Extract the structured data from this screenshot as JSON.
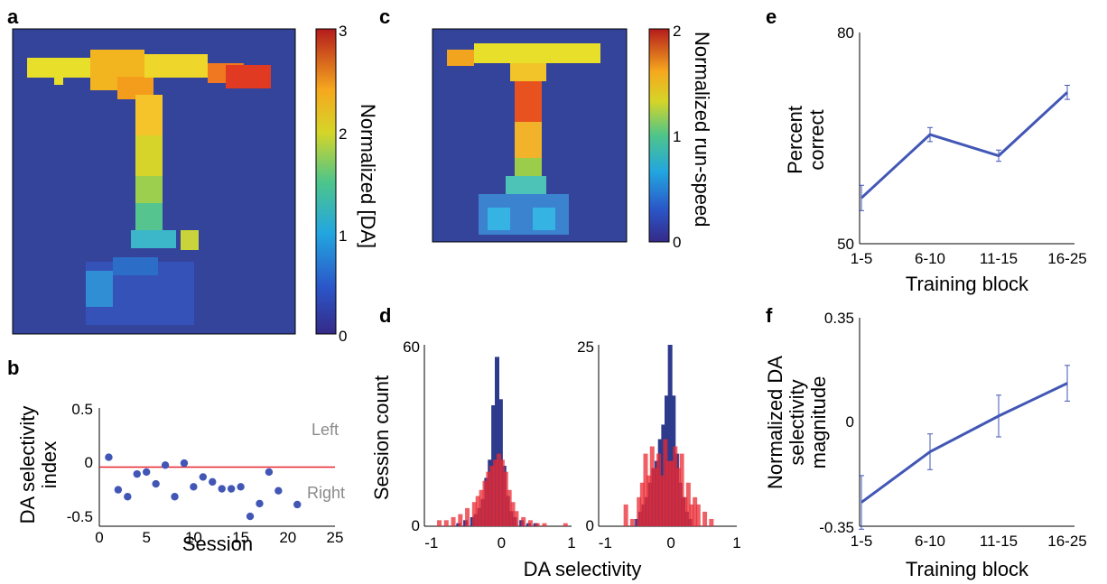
{
  "colors": {
    "bg_map": "#35449b",
    "line": "#4257b5",
    "red": "#e8242c",
    "blue_hist": "#2e3a8c",
    "red_hist": "#ea2a33",
    "gray": "#8a8a8a"
  },
  "panels": {
    "a": "a",
    "b": "b",
    "c": "c",
    "d": "d",
    "e": "e",
    "f": "f"
  },
  "chart_data": [
    {
      "id": "a",
      "type": "heatmap",
      "colorbar_label": "Normalized [DA]",
      "colorbar_ticks": [
        "0",
        "1",
        "2",
        "3"
      ],
      "clim": [
        0,
        3
      ],
      "colormap": "jet"
    },
    {
      "id": "c",
      "type": "heatmap",
      "colorbar_label": "Normalized run-speed",
      "colorbar_ticks": [
        "0",
        "1",
        "2"
      ],
      "clim": [
        0,
        2
      ],
      "colormap": "jet"
    },
    {
      "id": "b",
      "type": "scatter",
      "xlabel": "Session",
      "ylabel": [
        "DA selectivity",
        "index"
      ],
      "xticks": [
        "0",
        "5",
        "10",
        "15",
        "20",
        "25"
      ],
      "yticks": [
        "0.5",
        "0",
        "-0.5"
      ],
      "xlim": [
        0,
        25
      ],
      "ylim": [
        -0.6,
        0.6
      ],
      "reference_line": 0,
      "annotations": [
        "Left",
        "Right"
      ],
      "x": [
        1,
        2,
        3,
        4,
        5,
        6,
        7,
        8,
        9,
        10,
        11,
        12,
        13,
        14,
        15,
        16,
        17,
        18,
        19,
        21
      ],
      "y": [
        0.1,
        -0.23,
        -0.3,
        -0.07,
        -0.05,
        -0.17,
        0.02,
        -0.3,
        0.04,
        -0.2,
        -0.1,
        -0.15,
        -0.22,
        -0.22,
        -0.2,
        -0.5,
        -0.37,
        -0.05,
        -0.24,
        -0.38
      ]
    },
    {
      "id": "d1",
      "type": "bar",
      "ylabel": "Session count",
      "xlim": [
        -1.1,
        1
      ],
      "ylim": [
        0,
        60
      ],
      "yticks": [
        "60",
        "0"
      ],
      "xticks": [
        "-1",
        "0",
        "1"
      ],
      "bin_centers": [
        -0.9,
        -0.8,
        -0.7,
        -0.6,
        -0.5,
        -0.4,
        -0.35,
        -0.3,
        -0.25,
        -0.2,
        -0.15,
        -0.1,
        -0.05,
        0,
        0.05,
        0.1,
        0.15,
        0.2,
        0.3,
        0.4,
        0.5,
        0.6,
        0.7,
        0.8,
        0.9
      ],
      "series": [
        {
          "values": [
            0,
            0,
            0,
            1,
            2,
            3,
            4,
            6,
            9,
            16,
            22,
            40,
            56,
            42,
            20,
            10,
            5,
            3,
            2,
            1,
            1,
            0,
            0,
            0,
            0
          ]
        },
        {
          "values": [
            2,
            2,
            3,
            4,
            6,
            8,
            10,
            12,
            15,
            18,
            20,
            22,
            24,
            22,
            18,
            12,
            8,
            5,
            3,
            2,
            1,
            1,
            0,
            0,
            1
          ]
        }
      ]
    },
    {
      "id": "d2",
      "type": "bar",
      "xlim": [
        -1.1,
        1
      ],
      "ylim": [
        0,
        25
      ],
      "yticks": [
        "25",
        "0"
      ],
      "xticks": [
        "-1",
        "0",
        "1"
      ],
      "xlabel": "DA selectivity",
      "bin_centers": [
        -0.7,
        -0.6,
        -0.5,
        -0.45,
        -0.4,
        -0.35,
        -0.3,
        -0.25,
        -0.2,
        -0.15,
        -0.1,
        -0.05,
        0,
        0.05,
        0.1,
        0.15,
        0.2,
        0.25,
        0.3,
        0.35,
        0.4,
        0.5,
        0.6
      ],
      "series": [
        {
          "values": [
            0,
            0,
            1,
            2,
            3,
            4,
            6,
            8,
            9,
            12,
            14,
            18,
            25,
            18,
            10,
            6,
            4,
            2,
            1,
            0,
            0,
            0,
            0
          ]
        },
        {
          "values": [
            3,
            1,
            4,
            6,
            10,
            7,
            11,
            8,
            10,
            7,
            12,
            9,
            9,
            11,
            8,
            10,
            4,
            6,
            3,
            4,
            3,
            2,
            1
          ]
        }
      ]
    },
    {
      "id": "e",
      "type": "line",
      "ylabel": [
        "Percent",
        "correct"
      ],
      "xlabel": "Training block",
      "categories": [
        "1-5",
        "6-10",
        "11-15",
        "16-25"
      ],
      "yticks": [
        "80",
        "50"
      ],
      "ylim": [
        50,
        80
      ],
      "values": [
        56.5,
        65.5,
        62.5,
        71.5
      ],
      "errors": [
        1.8,
        1.0,
        0.8,
        1.0
      ]
    },
    {
      "id": "f",
      "type": "line",
      "ylabel": [
        "Normalized DA",
        "selectivity",
        "magnitude"
      ],
      "xlabel": "Training block",
      "categories": [
        "1-5",
        "6-10",
        "11-15",
        "16-25"
      ],
      "yticks": [
        "0.35",
        "0",
        "-0.35"
      ],
      "ylim": [
        -0.35,
        0.35
      ],
      "values": [
        -0.27,
        -0.1,
        0.02,
        0.13
      ],
      "errors": [
        0.09,
        0.06,
        0.07,
        0.06
      ]
    }
  ]
}
